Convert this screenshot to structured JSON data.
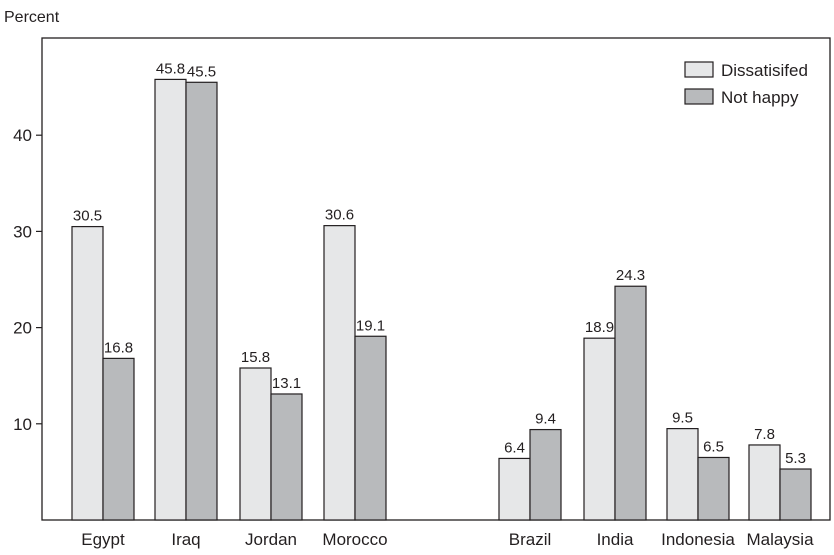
{
  "chart_data": {
    "type": "bar",
    "ylabel": "Percent",
    "ylim": [
      0,
      50
    ],
    "yticks": [
      10,
      20,
      30,
      40
    ],
    "grid": false,
    "legend_position": "top-right",
    "categories": [
      "Egypt",
      "Iraq",
      "Jordan",
      "Morocco",
      "Brazil",
      "India",
      "Indonesia",
      "Malaysia"
    ],
    "series": [
      {
        "name": "Dissatisifed",
        "color": "#e6e7e8",
        "values": [
          30.5,
          45.8,
          15.8,
          30.6,
          6.4,
          18.9,
          9.5,
          7.8
        ]
      },
      {
        "name": "Not happy",
        "color": "#b8babc",
        "values": [
          16.8,
          45.5,
          13.1,
          19.1,
          9.4,
          24.3,
          6.5,
          5.3
        ]
      }
    ],
    "value_labels": [
      [
        "30.5",
        "45.8",
        "15.8",
        "30.6",
        "6.4",
        "18.9",
        "9.5",
        "7.8"
      ],
      [
        "16.8",
        "45.5",
        "13.1",
        "19.1",
        "9.4",
        "24.3",
        "6.5",
        "5.3"
      ]
    ]
  }
}
